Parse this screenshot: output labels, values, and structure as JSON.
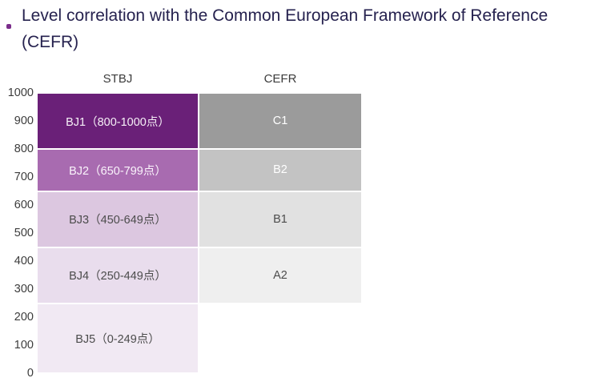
{
  "title_lines": [
    "Level correlation with the Common European Framework of Reference",
    "(CEFR)"
  ],
  "accent_color": "#7b2d8b",
  "chart_data": {
    "type": "bar",
    "subtype": "stacked-range-comparison",
    "title": "Level correlation with the Common European Framework of Reference (CEFR)",
    "axis": {
      "min": 0,
      "max": 1000,
      "ticks": [
        1000,
        900,
        800,
        700,
        600,
        500,
        400,
        300,
        200,
        100,
        0
      ]
    },
    "legend": "none",
    "grid": "off",
    "columns": [
      {
        "header": "STBJ",
        "blocks": [
          {
            "label": "BJ1（800-1000点）",
            "from": 800,
            "to": 1000,
            "bg": "#6a2078",
            "fg": "#f6f0f7"
          },
          {
            "label": "BJ2（650-799点）",
            "from": 650,
            "to": 800,
            "bg": "#a86bb0",
            "fg": "#faf4fb"
          },
          {
            "label": "BJ3（450-649点）",
            "from": 450,
            "to": 650,
            "bg": "#dcc7e0",
            "fg": "#4c4c4c"
          },
          {
            "label": "BJ4（250-449点）",
            "from": 250,
            "to": 450,
            "bg": "#e9dded",
            "fg": "#4c4c4c"
          },
          {
            "label": "BJ5（0-249点）",
            "from": 0,
            "to": 250,
            "bg": "#f1e9f3",
            "fg": "#4c4c4c"
          }
        ]
      },
      {
        "header": "CEFR",
        "blocks": [
          {
            "label": "C1",
            "from": 800,
            "to": 1000,
            "bg": "#9b9b9b",
            "fg": "#ffffff"
          },
          {
            "label": "B2",
            "from": 650,
            "to": 800,
            "bg": "#c3c3c3",
            "fg": "#ffffff"
          },
          {
            "label": "B1",
            "from": 450,
            "to": 650,
            "bg": "#e1e1e1",
            "fg": "#4c4c4c"
          },
          {
            "label": "A2",
            "from": 250,
            "to": 450,
            "bg": "#efefef",
            "fg": "#4c4c4c"
          }
        ]
      }
    ]
  }
}
